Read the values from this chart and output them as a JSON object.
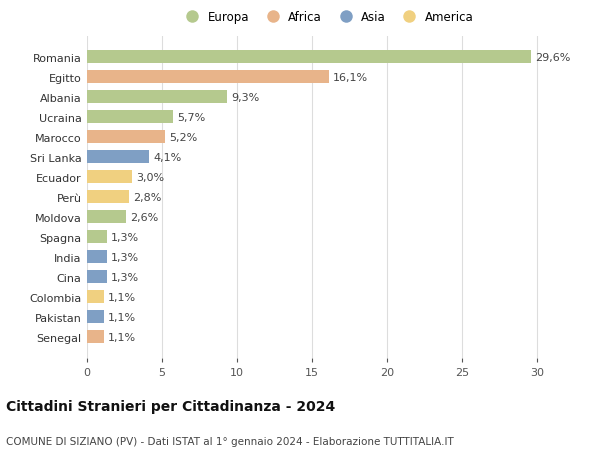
{
  "countries": [
    "Romania",
    "Egitto",
    "Albania",
    "Ucraina",
    "Marocco",
    "Sri Lanka",
    "Ecuador",
    "Perù",
    "Moldova",
    "Spagna",
    "India",
    "Cina",
    "Colombia",
    "Pakistan",
    "Senegal"
  ],
  "values": [
    29.6,
    16.1,
    9.3,
    5.7,
    5.2,
    4.1,
    3.0,
    2.8,
    2.6,
    1.3,
    1.3,
    1.3,
    1.1,
    1.1,
    1.1
  ],
  "labels": [
    "29,6%",
    "16,1%",
    "9,3%",
    "5,7%",
    "5,2%",
    "4,1%",
    "3,0%",
    "2,8%",
    "2,6%",
    "1,3%",
    "1,3%",
    "1,3%",
    "1,1%",
    "1,1%",
    "1,1%"
  ],
  "continents": [
    "Europa",
    "Africa",
    "Europa",
    "Europa",
    "Africa",
    "Asia",
    "America",
    "America",
    "Europa",
    "Europa",
    "Asia",
    "Asia",
    "America",
    "Asia",
    "Africa"
  ],
  "continent_colors": {
    "Europa": "#b5c98e",
    "Africa": "#e8b48a",
    "Asia": "#7f9fc4",
    "America": "#f0d080"
  },
  "legend_order": [
    "Europa",
    "Africa",
    "Asia",
    "America"
  ],
  "title": "Cittadini Stranieri per Cittadinanza - 2024",
  "subtitle": "COMUNE DI SIZIANO (PV) - Dati ISTAT al 1° gennaio 2024 - Elaborazione TUTTITALIA.IT",
  "xlim": [
    0,
    32
  ],
  "xticks": [
    0,
    5,
    10,
    15,
    20,
    25,
    30
  ],
  "background_color": "#ffffff",
  "bar_height": 0.65,
  "title_fontsize": 10,
  "subtitle_fontsize": 7.5,
  "label_fontsize": 8,
  "tick_fontsize": 8,
  "legend_fontsize": 8.5
}
